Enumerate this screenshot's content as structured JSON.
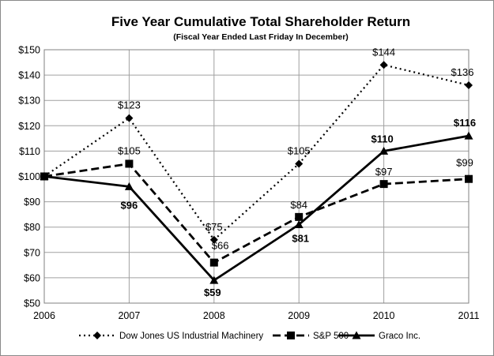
{
  "chart_data": {
    "type": "line",
    "title": "Five Year Cumulative Total Shareholder Return",
    "subtitle": "(Fiscal Year Ended Last Friday In December)",
    "categories": [
      "2006",
      "2007",
      "2008",
      "2009",
      "2010",
      "2011"
    ],
    "ylim": [
      50,
      150
    ],
    "y_ticks": [
      "$50",
      "$60",
      "$70",
      "$80",
      "$90",
      "$100",
      "$110",
      "$120",
      "$130",
      "$140",
      "$150"
    ],
    "grid": true,
    "legend_position": "bottom",
    "series": [
      {
        "name": "Dow Jones US Industrial Machinery",
        "style": "dotted",
        "marker": "diamond",
        "values": [
          100,
          123,
          75,
          105,
          144,
          136
        ],
        "labels": [
          "",
          "$123",
          "$75",
          "$105",
          "$144",
          "$136"
        ],
        "label_weight": "normal"
      },
      {
        "name": "S&P 500",
        "style": "dashed",
        "marker": "square",
        "values": [
          100,
          105,
          66,
          84,
          97,
          99
        ],
        "labels": [
          "",
          "$105",
          "$66",
          "$84",
          "$97",
          "$99"
        ],
        "label_weight": "normal"
      },
      {
        "name": "Graco Inc.",
        "style": "solid",
        "marker": "triangle",
        "values": [
          100,
          96,
          59,
          81,
          110,
          116
        ],
        "labels": [
          "",
          "$96",
          "$59",
          "$81",
          "$110",
          "$116"
        ],
        "label_weight": "bold"
      }
    ]
  }
}
